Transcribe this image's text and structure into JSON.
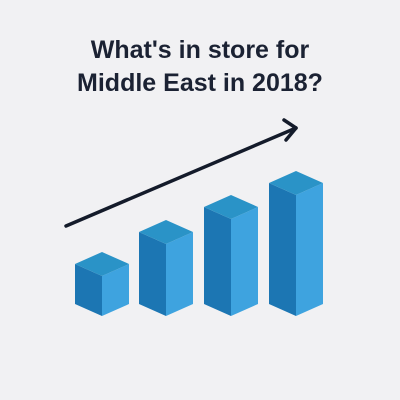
{
  "headline": {
    "line1": "What's in store for",
    "line2": "Middle East in 2018?"
  },
  "illustration": {
    "colors": {
      "bar_top": "#2a93c7",
      "bar_front": "#1c76b3",
      "bar_side": "#3ea3df",
      "arrow": "#141b2a"
    }
  }
}
